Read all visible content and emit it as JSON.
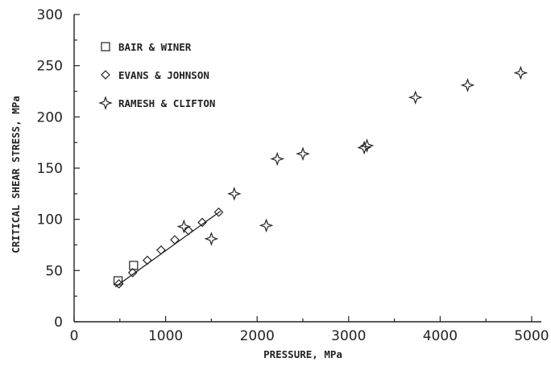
{
  "chart_data": {
    "type": "scatter",
    "title": "",
    "xlabel": "PRESSURE, MPa",
    "ylabel": "CRITICAL SHEAR STRESS, MPa",
    "xlim": [
      0,
      5000
    ],
    "ylim": [
      0,
      300
    ],
    "xticks": [
      0,
      1000,
      2000,
      3000,
      4000,
      5000
    ],
    "yticks": [
      0,
      50,
      100,
      150,
      200,
      250,
      300
    ],
    "legend_position": "top-left",
    "grid": false,
    "series": [
      {
        "name": "BAIR & WINER",
        "marker": "square",
        "points": [
          {
            "x": 480,
            "y": 40
          },
          {
            "x": 650,
            "y": 55
          }
        ]
      },
      {
        "name": "EVANS & JOHNSON",
        "marker": "diamond",
        "points": [
          {
            "x": 490,
            "y": 37
          },
          {
            "x": 640,
            "y": 48
          },
          {
            "x": 800,
            "y": 60
          },
          {
            "x": 950,
            "y": 70
          },
          {
            "x": 1100,
            "y": 80
          },
          {
            "x": 1250,
            "y": 89
          },
          {
            "x": 1400,
            "y": 97
          },
          {
            "x": 1580,
            "y": 107
          }
        ]
      },
      {
        "name": "RAMESH & CLIFTON",
        "marker": "star",
        "points": [
          {
            "x": 1200,
            "y": 93
          },
          {
            "x": 1500,
            "y": 81
          },
          {
            "x": 1750,
            "y": 125
          },
          {
            "x": 2100,
            "y": 94
          },
          {
            "x": 2220,
            "y": 159
          },
          {
            "x": 2500,
            "y": 164
          },
          {
            "x": 3170,
            "y": 170
          },
          {
            "x": 3200,
            "y": 172
          },
          {
            "x": 3730,
            "y": 219
          },
          {
            "x": 4300,
            "y": 231
          },
          {
            "x": 4880,
            "y": 243
          }
        ]
      }
    ],
    "fit_line": {
      "x": [
        450,
        1600
      ],
      "y": [
        34,
        108
      ]
    }
  }
}
